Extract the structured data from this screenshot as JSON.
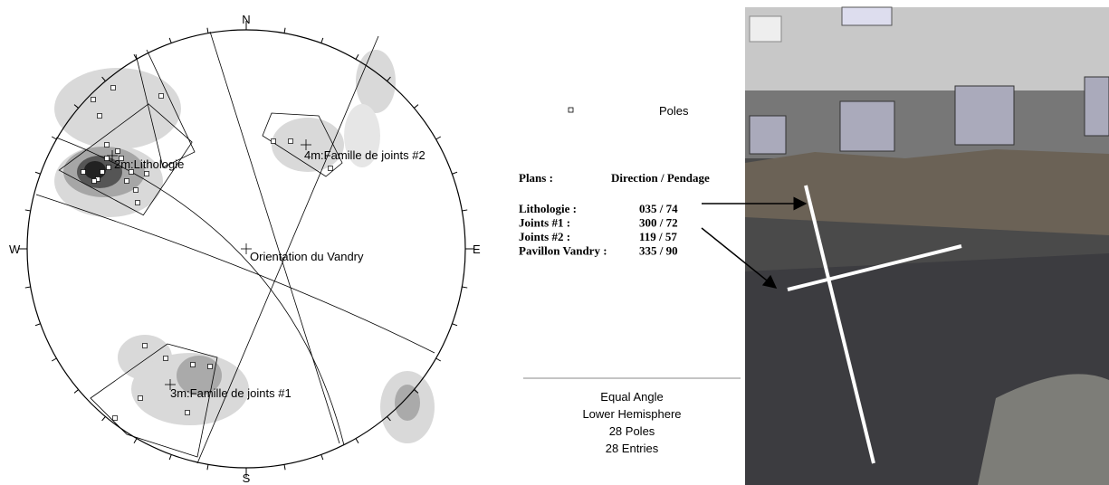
{
  "stereonet": {
    "north": "N",
    "south": "S",
    "east": "E",
    "west": "W",
    "labels": [
      "2m:Lithologie",
      "4m:Famille de joints #2",
      "Orientation du Vandry",
      "3m:Famille de joints #1"
    ]
  },
  "legend": {
    "symbol_label": "Poles",
    "header": [
      "Plans :",
      "Direction / Pendage"
    ],
    "rows": [
      [
        "Lithologie :",
        "035 / 74"
      ],
      [
        "Joints #1 :",
        "300 / 72"
      ],
      [
        "Joints #2 :",
        "119 / 57"
      ],
      [
        "Pavillon Vandry :",
        "335 / 90"
      ]
    ]
  },
  "footer": [
    "Equal Angle",
    "Lower Hemisphere",
    "28 Poles",
    "28 Entries"
  ]
}
